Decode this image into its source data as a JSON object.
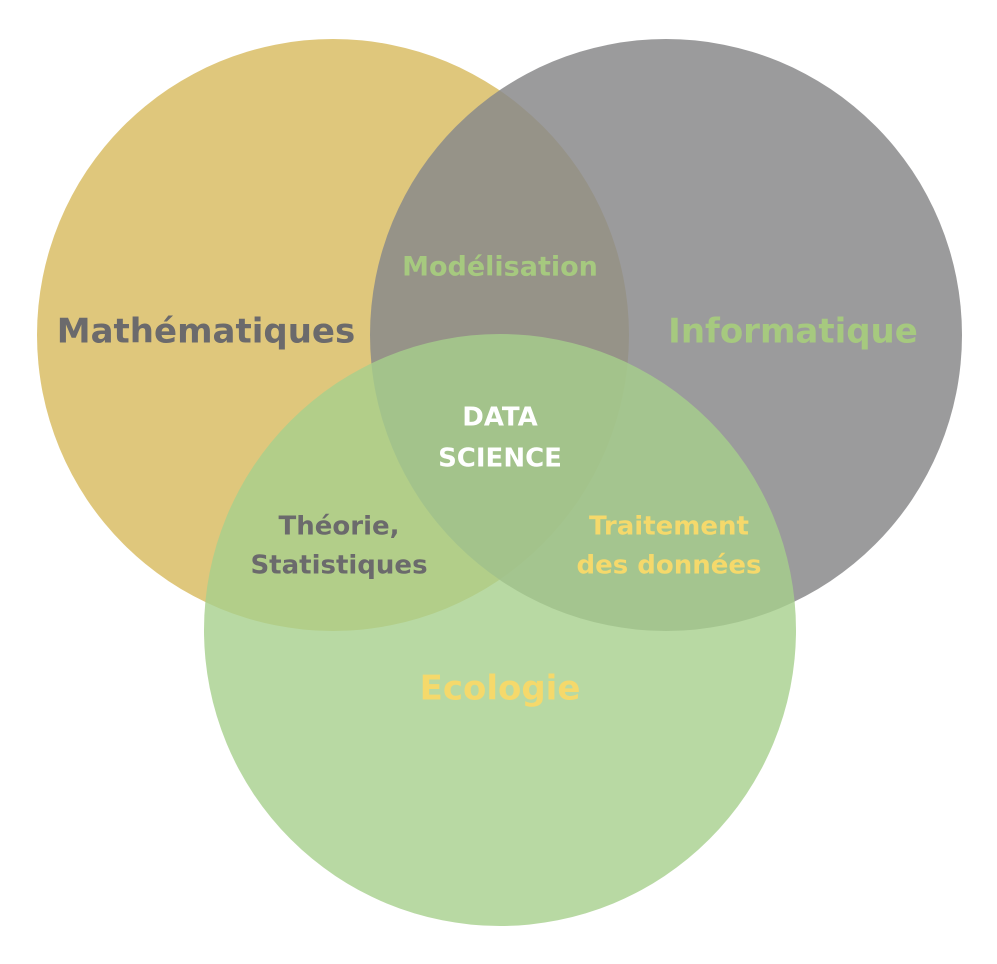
{
  "sets": {
    "math": {
      "label": "Mathématiques",
      "fill": "#d9bd65",
      "label_color": "#6b6a6c"
    },
    "info": {
      "label": "Informatique",
      "fill": "#8a898b",
      "label_color": "#a6c97f"
    },
    "eco": {
      "label": "Ecologie",
      "fill": "#a6cf8c",
      "label_color": "#f5d96b"
    }
  },
  "intersections": {
    "math_info": {
      "label": "Modélisation",
      "color": "#a6c97f"
    },
    "math_eco": {
      "line1": "Théorie,",
      "line2": "Statistiques",
      "color": "#6b6a6c"
    },
    "info_eco": {
      "line1": "Traitement",
      "line2": "des données",
      "color": "#f5d96b"
    },
    "center": {
      "line1": "DATA",
      "line2": "SCIENCE",
      "color": "#ffffff"
    }
  }
}
